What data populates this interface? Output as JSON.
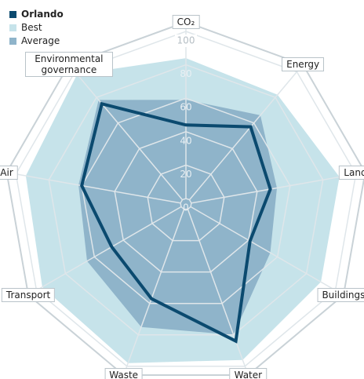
{
  "chart_data": {
    "type": "radar",
    "categories": [
      "CO₂",
      "Energy",
      "Land use",
      "Buildings",
      "Water",
      "Waste",
      "Transport",
      "Air",
      "Environmental governance"
    ],
    "series": [
      {
        "name": "Best",
        "color": "#c6e3ea",
        "values": [
          84,
          82,
          90,
          90,
          96,
          98,
          96,
          94,
          98
        ]
      },
      {
        "name": "Average",
        "color": "#8fb4ca",
        "values": [
          59,
          66,
          52,
          55,
          80,
          75,
          65,
          62,
          78
        ]
      },
      {
        "name": "Orlando",
        "color": "#0b4a6f",
        "values": [
          44,
          57,
          48,
          41,
          84,
          57,
          48,
          60,
          75
        ]
      }
    ],
    "legend_order": [
      "Orlando",
      "Best",
      "Average"
    ],
    "ylim": [
      0,
      100
    ],
    "yticks": [
      0,
      20,
      40,
      60,
      80,
      100
    ],
    "grid": true
  }
}
